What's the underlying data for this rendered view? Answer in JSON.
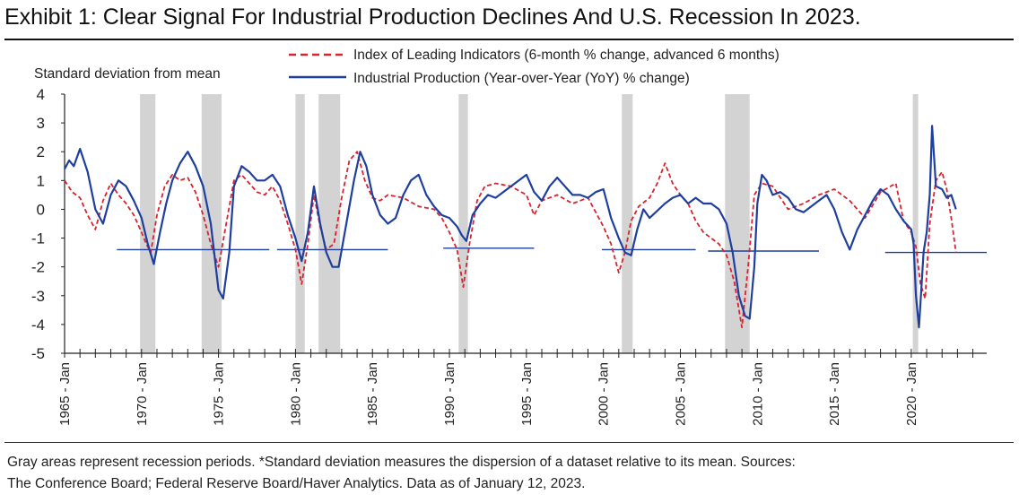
{
  "title": "Exhibit 1: Clear Signal For Industrial Production Declines And U.S. Recession In 2023.",
  "note_line1": "Gray areas represent recession periods. *Standard deviation measures the dispersion of a dataset relative to its mean. Sources:",
  "note_line2": "The Conference Board; Federal Reserve Board/Haver Analytics. Data as of January 12, 2023.",
  "colors": {
    "lei": "#d9232e",
    "ip": "#1f3f9f",
    "recession": "#d3d3d3",
    "threshold": "#1f3f9f"
  },
  "chart_data": {
    "type": "line",
    "title": "Exhibit 1: Clear Signal For Industrial Production Declines And U.S. Recession In 2023.",
    "ylabel": "Standard deviation from mean",
    "ylim": [
      -5,
      4
    ],
    "y_ticks": [
      "4",
      "3",
      "2",
      "1",
      "0",
      "-1",
      "-2",
      "-3",
      "-4",
      "-5"
    ],
    "x_range": [
      1965.0,
      2023.0
    ],
    "x_ticks": [
      "1965 - Jan",
      "1970 - Jan",
      "1975 - Jan",
      "1980 - Jan",
      "1985 - Jan",
      "1990 - Jan",
      "1995 - Jan",
      "2000 - Jan",
      "2005 - Jan",
      "2010 - Jan",
      "2015 - Jan",
      "2020 - Jan"
    ],
    "x_tick_years": [
      1965,
      1970,
      1975,
      1980,
      1985,
      1990,
      1995,
      2000,
      2005,
      2010,
      2015,
      2020
    ],
    "legend_placement": "top-center",
    "recessions": [
      [
        1969.9,
        1970.9
      ],
      [
        1973.9,
        1975.2
      ],
      [
        1980.0,
        1980.6
      ],
      [
        1981.5,
        1982.9
      ],
      [
        1990.6,
        1991.2
      ],
      [
        2001.2,
        2001.9
      ],
      [
        2007.9,
        2009.5
      ],
      [
        2020.1,
        2020.4
      ]
    ],
    "thresholds": [
      {
        "x": [
          1968.4,
          1978.3
        ],
        "y": -1.4
      },
      {
        "x": [
          1978.8,
          1986.0
        ],
        "y": -1.4
      },
      {
        "x": [
          1989.6,
          1995.5
        ],
        "y": -1.35
      },
      {
        "x": [
          1999.9,
          2006.0
        ],
        "y": -1.4
      },
      {
        "x": [
          2006.8,
          2014.0
        ],
        "y": -1.45
      },
      {
        "x": [
          2018.3,
          2024.9
        ],
        "y": -1.5
      }
    ],
    "series": [
      {
        "name": "Index of Leading Indicators (6-month % change, advanced 6 months)",
        "style": "dashed",
        "x": [
          1965.0,
          1965.5,
          1966.0,
          1966.5,
          1967.0,
          1967.5,
          1968.0,
          1968.5,
          1969.0,
          1969.5,
          1970.0,
          1970.3,
          1970.6,
          1971.0,
          1971.5,
          1972.0,
          1972.5,
          1973.0,
          1973.5,
          1974.0,
          1974.5,
          1975.0,
          1975.5,
          1976.0,
          1976.5,
          1977.0,
          1977.5,
          1978.0,
          1978.5,
          1979.0,
          1979.5,
          1980.0,
          1980.4,
          1980.8,
          1981.2,
          1981.6,
          1982.0,
          1982.5,
          1983.0,
          1983.5,
          1984.0,
          1984.5,
          1985.0,
          1985.5,
          1986.0,
          1987.0,
          1988.0,
          1989.0,
          1989.5,
          1990.0,
          1990.5,
          1990.9,
          1991.3,
          1991.8,
          1992.3,
          1993.0,
          1994.0,
          1995.0,
          1995.5,
          1996.0,
          1997.0,
          1998.0,
          1999.0,
          2000.0,
          2000.5,
          2001.0,
          2001.4,
          2001.8,
          2002.3,
          2003.0,
          2003.5,
          2004.0,
          2004.5,
          2005.0,
          2005.5,
          2006.0,
          2006.5,
          2007.0,
          2007.5,
          2008.0,
          2008.5,
          2009.0,
          2009.4,
          2009.8,
          2010.3,
          2011.0,
          2012.0,
          2013.0,
          2014.0,
          2015.0,
          2016.0,
          2017.0,
          2018.0,
          2019.0,
          2019.5,
          2020.0,
          2020.3,
          2020.6,
          2020.9,
          2021.2,
          2021.6,
          2022.0,
          2022.3,
          2022.6,
          2022.9
        ],
        "y": [
          1.0,
          0.6,
          0.4,
          -0.2,
          -0.7,
          0.3,
          0.9,
          0.5,
          0.2,
          -0.2,
          -0.8,
          -1.2,
          -1.5,
          -0.2,
          0.8,
          1.2,
          1.0,
          1.1,
          0.6,
          -0.2,
          -1.2,
          -2.0,
          -0.5,
          1.0,
          1.2,
          0.9,
          0.6,
          0.5,
          0.8,
          0.3,
          -0.5,
          -1.4,
          -2.6,
          -1.2,
          0.5,
          -0.6,
          -1.4,
          -1.2,
          0.4,
          1.7,
          2.0,
          1.0,
          0.4,
          0.3,
          0.5,
          0.4,
          0.1,
          0.0,
          -0.3,
          -0.8,
          -1.4,
          -2.7,
          -1.2,
          0.3,
          0.8,
          0.9,
          0.8,
          0.5,
          -0.2,
          0.3,
          0.5,
          0.2,
          0.4,
          -0.6,
          -1.2,
          -2.2,
          -1.5,
          -0.4,
          0.1,
          0.4,
          0.9,
          1.6,
          0.9,
          0.5,
          0.2,
          -0.4,
          -0.8,
          -1.0,
          -1.2,
          -1.6,
          -2.5,
          -4.1,
          -2.0,
          0.5,
          0.9,
          0.8,
          0.0,
          0.2,
          0.5,
          0.7,
          0.3,
          -0.3,
          0.6,
          0.9,
          -0.4,
          -0.8,
          -1.3,
          -2.6,
          -3.1,
          -0.5,
          1.0,
          1.3,
          0.7,
          -0.3,
          -1.5
        ]
      },
      {
        "name": "Industrial Production (Year-over-Year (YoY) % change)",
        "style": "solid",
        "x": [
          1965.0,
          1965.3,
          1965.6,
          1966.0,
          1966.5,
          1967.0,
          1967.5,
          1968.0,
          1968.5,
          1969.0,
          1969.5,
          1970.0,
          1970.4,
          1970.8,
          1971.2,
          1971.6,
          1972.0,
          1972.5,
          1973.0,
          1973.5,
          1974.0,
          1974.5,
          1975.0,
          1975.3,
          1975.7,
          1976.0,
          1976.5,
          1977.0,
          1977.5,
          1978.0,
          1978.5,
          1979.0,
          1979.5,
          1980.0,
          1980.4,
          1980.8,
          1981.2,
          1981.6,
          1982.0,
          1982.4,
          1982.8,
          1983.3,
          1983.8,
          1984.2,
          1984.6,
          1985.0,
          1985.5,
          1986.0,
          1986.5,
          1987.0,
          1987.5,
          1988.0,
          1988.5,
          1989.0,
          1989.5,
          1990.0,
          1990.5,
          1990.8,
          1991.1,
          1991.5,
          1992.0,
          1992.5,
          1993.0,
          1994.0,
          1995.0,
          1995.5,
          1996.0,
          1996.5,
          1997.0,
          1997.5,
          1998.0,
          1998.5,
          1999.0,
          1999.5,
          2000.0,
          2000.5,
          2001.0,
          2001.4,
          2001.8,
          2002.2,
          2002.6,
          2003.0,
          2004.0,
          2004.5,
          2005.0,
          2005.5,
          2006.0,
          2006.5,
          2007.0,
          2007.5,
          2008.0,
          2008.4,
          2008.8,
          2009.2,
          2009.5,
          2009.8,
          2010.0,
          2010.3,
          2010.6,
          2011.0,
          2011.5,
          2012.0,
          2012.5,
          2013.0,
          2014.0,
          2014.5,
          2015.0,
          2015.5,
          2016.0,
          2016.5,
          2017.0,
          2017.5,
          2018.0,
          2018.5,
          2019.0,
          2019.5,
          2020.0,
          2020.15,
          2020.3,
          2020.5,
          2020.8,
          2021.0,
          2021.2,
          2021.35,
          2021.6,
          2022.0,
          2022.3,
          2022.6,
          2022.9
        ],
        "y": [
          1.4,
          1.7,
          1.5,
          2.1,
          1.3,
          0.0,
          -0.5,
          0.5,
          1.0,
          0.8,
          0.3,
          -0.3,
          -1.2,
          -1.9,
          -0.8,
          0.2,
          1.0,
          1.6,
          2.0,
          1.5,
          0.8,
          -0.5,
          -2.8,
          -3.1,
          -1.5,
          0.8,
          1.5,
          1.3,
          1.0,
          1.0,
          1.2,
          0.8,
          -0.2,
          -1.0,
          -1.8,
          -0.8,
          0.8,
          -0.5,
          -1.5,
          -2.0,
          -2.0,
          -0.5,
          1.0,
          2.0,
          1.5,
          0.5,
          -0.2,
          -0.5,
          -0.3,
          0.5,
          1.0,
          1.2,
          0.5,
          0.1,
          -0.2,
          -0.3,
          -0.6,
          -0.9,
          -1.1,
          -0.2,
          0.2,
          0.5,
          0.4,
          0.8,
          1.2,
          0.6,
          0.3,
          0.8,
          1.1,
          0.8,
          0.5,
          0.5,
          0.4,
          0.6,
          0.7,
          -0.3,
          -1.0,
          -1.5,
          -1.6,
          -0.7,
          0.0,
          -0.3,
          0.2,
          0.4,
          0.5,
          0.2,
          0.4,
          0.2,
          0.2,
          0.0,
          -0.5,
          -1.5,
          -3.0,
          -3.7,
          -3.8,
          -2.0,
          0.2,
          1.2,
          1.0,
          0.5,
          0.6,
          0.4,
          0.0,
          -0.1,
          0.3,
          0.5,
          0.0,
          -0.8,
          -1.4,
          -0.7,
          -0.2,
          0.3,
          0.7,
          0.5,
          0.0,
          -0.4,
          -0.7,
          -1.2,
          -3.0,
          -4.1,
          -1.5,
          -0.8,
          0.5,
          2.9,
          0.8,
          0.7,
          0.4,
          0.5,
          0.0
        ]
      }
    ]
  }
}
